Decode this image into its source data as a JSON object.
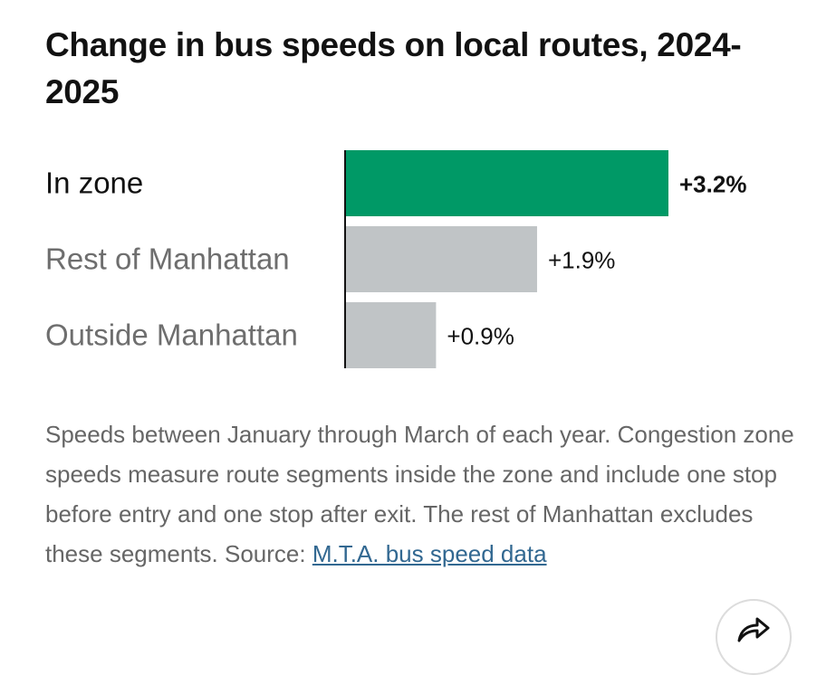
{
  "chart_data": {
    "type": "bar",
    "orientation": "horizontal",
    "title": "Change in bus speeds on local routes, 2024-2025",
    "categories": [
      "In zone",
      "Rest of Manhattan",
      "Outside Manhattan"
    ],
    "values": [
      3.2,
      1.9,
      0.9
    ],
    "value_labels": [
      "+3.2%",
      "+1.9%",
      "+0.9%"
    ],
    "highlight_index": 0,
    "colors": {
      "highlight": "#009966",
      "default": "#c0c4c6",
      "axis": "#121212",
      "highlight_text": "#121212",
      "default_text": "#6e6e6e"
    },
    "xlim": [
      0,
      3.2
    ],
    "grid": false,
    "legend": "none"
  },
  "note": {
    "text": "Speeds between January through March of each year. Congestion zone speeds measure route segments inside the zone and include one stop before entry and one stop after exit. The rest of Manhattan excludes these segments. Source: ",
    "link_text": "M.T.A. bus speed data"
  },
  "share_icon": "share-arrow-icon"
}
